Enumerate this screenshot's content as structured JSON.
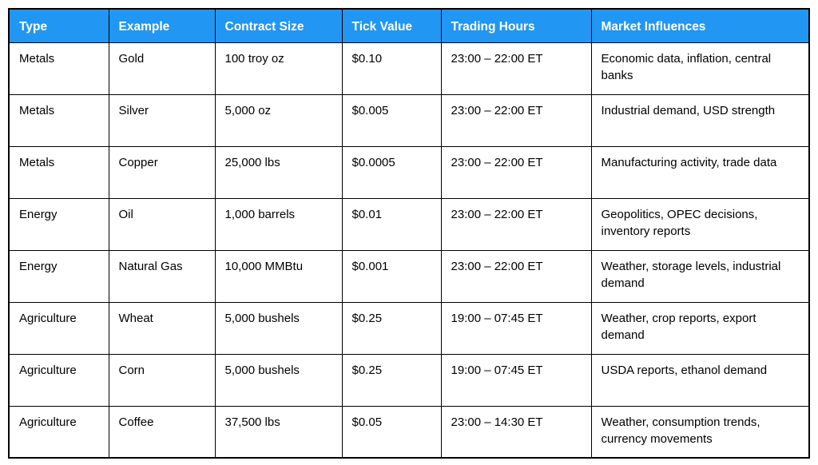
{
  "colors": {
    "header_bg": "#2196F3",
    "header_text": "#FFFFFF",
    "body_text": "#000000",
    "border": "#000000"
  },
  "table": {
    "columns": [
      "Type",
      "Example",
      "Contract Size",
      "Tick Value",
      "Trading Hours",
      "Market Influences"
    ],
    "rows": [
      [
        "Metals",
        "Gold",
        "100 troy oz",
        "$0.10",
        "23:00 – 22:00 ET",
        "Economic data, inflation, central banks"
      ],
      [
        "Metals",
        "Silver",
        "5,000 oz",
        "$0.005",
        "23:00 – 22:00 ET",
        "Industrial demand, USD strength"
      ],
      [
        "Metals",
        "Copper",
        "25,000 lbs",
        "$0.0005",
        "23:00 – 22:00 ET",
        "Manufacturing activity, trade data"
      ],
      [
        "Energy",
        "Oil",
        "1,000 barrels",
        "$0.01",
        "23:00 – 22:00 ET",
        "Geopolitics, OPEC decisions, inventory reports"
      ],
      [
        "Energy",
        "Natural Gas",
        "10,000 MMBtu",
        "$0.001",
        "23:00 – 22:00 ET",
        "Weather, storage levels, industrial demand"
      ],
      [
        "Agriculture",
        "Wheat",
        "5,000 bushels",
        "$0.25",
        "19:00 – 07:45 ET",
        "Weather, crop reports, export demand"
      ],
      [
        "Agriculture",
        "Corn",
        "5,000 bushels",
        "$0.25",
        "19:00 – 07:45 ET",
        "USDA reports, ethanol demand"
      ],
      [
        "Agriculture",
        "Coffee",
        "37,500 lbs",
        "$0.05",
        "23:00 – 14:30 ET",
        "Weather, consumption trends, currency movements"
      ]
    ]
  }
}
